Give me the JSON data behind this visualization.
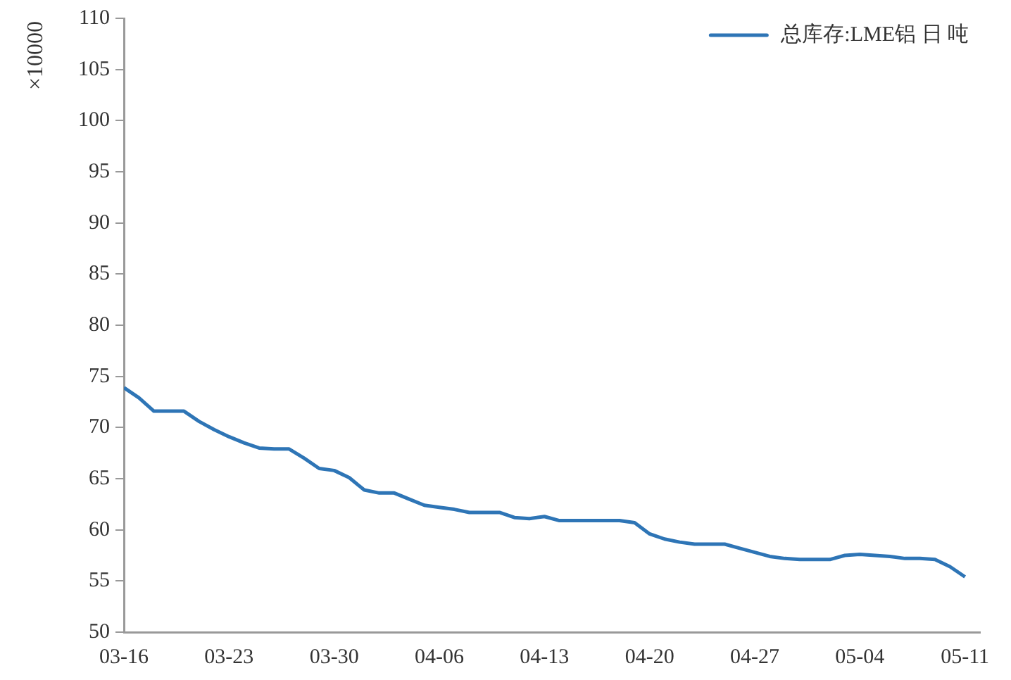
{
  "chart_data": {
    "type": "line",
    "ylabel": "×10000",
    "legend": "top right",
    "marker": "none",
    "grid": false,
    "x": [
      "--03-16",
      "--03-17",
      "--03-18",
      "--03-19",
      "--03-20",
      "--03-21",
      "--03-22",
      "--03-23",
      "--03-24",
      "--03-25",
      "--03-26",
      "--03-27",
      "--03-28",
      "--03-29",
      "--03-30",
      "--03-31",
      "--04-01",
      "--04-02",
      "--04-03",
      "--04-04",
      "--04-05",
      "--04-06",
      "--04-07",
      "--04-08",
      "--04-09",
      "--04-10",
      "--04-11",
      "--04-12",
      "--04-13",
      "--04-14",
      "--04-15",
      "--04-16",
      "--04-17",
      "--04-18",
      "--04-19",
      "--04-20",
      "--04-21",
      "--04-22",
      "--04-23",
      "--04-24",
      "--04-25",
      "--04-26",
      "--04-27",
      "--04-28",
      "--04-29",
      "--04-30",
      "--05-01",
      "--05-02",
      "--05-03",
      "--05-04",
      "--05-05",
      "--05-06",
      "--05-07",
      "--05-08",
      "--05-09",
      "--05-10",
      "--05-11"
    ],
    "series": [
      {
        "name": "总库存:LME铝 日 吨",
        "color": "#2e75b6",
        "values": [
          73.9,
          72.9,
          71.6,
          71.6,
          71.6,
          70.6,
          69.8,
          69.1,
          68.5,
          68.0,
          67.9,
          67.9,
          67.0,
          66.0,
          65.8,
          65.1,
          63.9,
          63.6,
          63.6,
          63.0,
          62.4,
          62.2,
          62.0,
          61.7,
          61.7,
          61.7,
          61.2,
          61.1,
          61.3,
          60.9,
          60.9,
          60.9,
          60.9,
          60.9,
          60.7,
          59.6,
          59.1,
          58.8,
          58.6,
          58.6,
          58.6,
          58.2,
          57.8,
          57.4,
          57.2,
          57.1,
          57.1,
          57.1,
          57.5,
          57.6,
          57.5,
          57.4,
          57.2,
          57.2,
          57.1,
          56.4,
          55.4
        ]
      }
    ],
    "xlim": [
      "--03-16",
      "--05-12"
    ],
    "xticks": [
      {
        "value": "--03-16",
        "label": "03-16"
      },
      {
        "value": "--03-23",
        "label": "03-23"
      },
      {
        "value": "--03-30",
        "label": "03-30"
      },
      {
        "value": "--04-06",
        "label": "04-06"
      },
      {
        "value": "--04-13",
        "label": "04-13"
      },
      {
        "value": "--04-20",
        "label": "04-20"
      },
      {
        "value": "--04-27",
        "label": "04-27"
      },
      {
        "value": "--05-04",
        "label": "05-04"
      },
      {
        "value": "--05-11",
        "label": "05-11"
      }
    ],
    "ylim": [
      50,
      110
    ],
    "yticks": [
      50,
      55,
      60,
      65,
      70,
      75,
      80,
      85,
      90,
      95,
      100,
      105,
      110
    ]
  }
}
